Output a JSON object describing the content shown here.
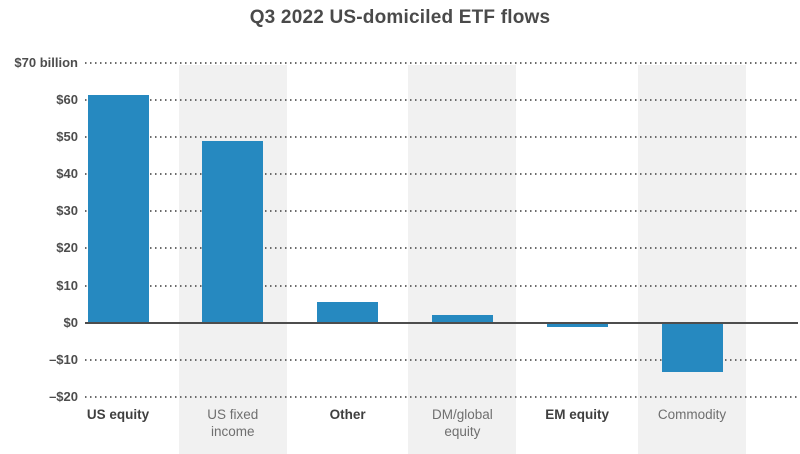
{
  "title": "Q3 2022 US-domiciled ETF flows",
  "chart_data": {
    "type": "bar",
    "title": "Q3 2022 US-domiciled ETF flows",
    "unit": "USD billions",
    "categories": [
      "US equity",
      "US fixed income",
      "Other",
      "DM/global equity",
      "EM equity",
      "Commodity"
    ],
    "values": [
      61.4,
      48.8,
      5.6,
      2.2,
      -0.8,
      -13.0
    ],
    "ylim": [
      -20,
      70
    ],
    "y_ticks": [
      {
        "value": 70,
        "label": "$70 billion"
      },
      {
        "value": 60,
        "label": "$60"
      },
      {
        "value": 50,
        "label": "$50"
      },
      {
        "value": 40,
        "label": "$40"
      },
      {
        "value": 30,
        "label": "$30"
      },
      {
        "value": 20,
        "label": "$20"
      },
      {
        "value": 10,
        "label": "$10"
      },
      {
        "value": 0,
        "label": "$0"
      },
      {
        "value": -10,
        "label": "–$10"
      },
      {
        "value": -20,
        "label": "–$20"
      }
    ],
    "grid": "dotted-horizontal",
    "legend": "none",
    "zero_line": true,
    "striped_columns": [
      1,
      3,
      5
    ],
    "colors": {
      "bar": "#2689c0",
      "stripe": "#f1f1f1",
      "grid_dots": "#6a6a6a",
      "zero_line": "#4d4d4d",
      "title_text": "#4a4a4a",
      "axis_text_dark": "#3f3f3f",
      "axis_text_light": "#6f6f6f"
    }
  }
}
